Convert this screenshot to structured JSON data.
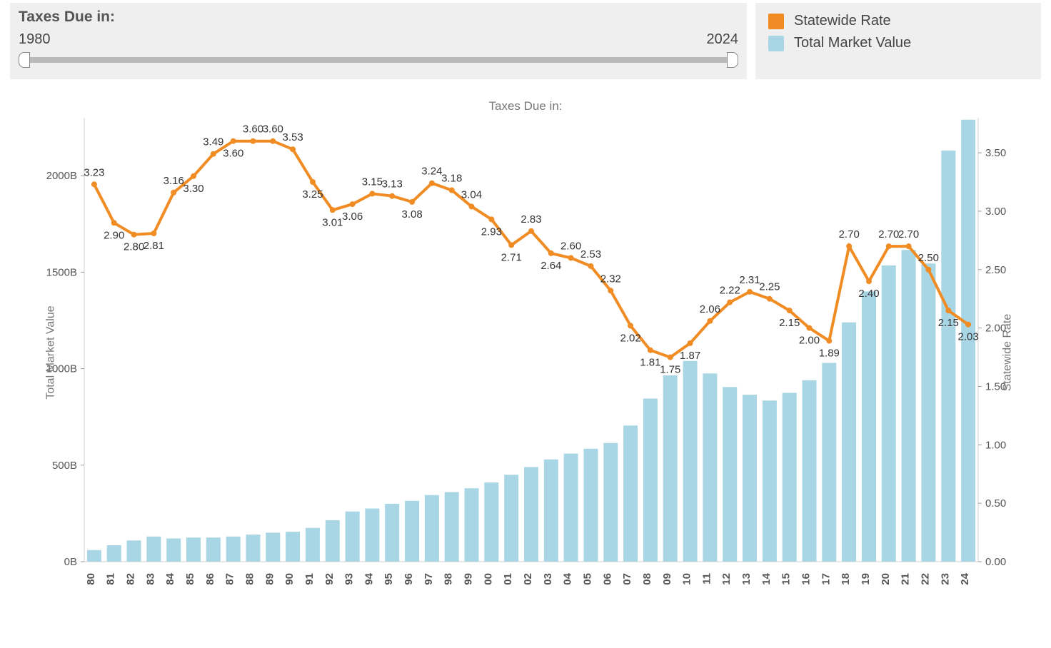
{
  "filter": {
    "title": "Taxes Due in:",
    "min_label": "1980",
    "max_label": "2024"
  },
  "legend": {
    "series1": {
      "label": "Statewide Rate",
      "color": "#f08c23"
    },
    "series2": {
      "label": "Total Market Value",
      "color": "#a9d6e5"
    }
  },
  "chart": {
    "title": "Taxes Due in:",
    "left_axis_label": "Total Market Value",
    "right_axis_label": "Statewide Rate",
    "background_color": "#ffffff",
    "grid_color": "#d8d8d8",
    "left_axis": {
      "min": 0,
      "max": 2300,
      "ticks": [
        0,
        500,
        1000,
        1500,
        2000
      ],
      "tick_labels": [
        "0B",
        "500B",
        "1000B",
        "1500B",
        "2000B"
      ]
    },
    "right_axis": {
      "min": 0,
      "max": 3.8,
      "ticks": [
        0,
        0.5,
        1.0,
        1.5,
        2.0,
        2.5,
        3.0,
        3.5
      ],
      "tick_labels": [
        "0.00",
        "0.50",
        "1.00",
        "1.50",
        "2.00",
        "2.50",
        "3.00",
        "3.50"
      ]
    },
    "years": [
      "80",
      "81",
      "82",
      "83",
      "84",
      "85",
      "86",
      "87",
      "88",
      "89",
      "90",
      "91",
      "92",
      "93",
      "94",
      "95",
      "96",
      "97",
      "98",
      "99",
      "00",
      "01",
      "02",
      "03",
      "04",
      "05",
      "06",
      "07",
      "08",
      "09",
      "10",
      "11",
      "12",
      "13",
      "14",
      "15",
      "16",
      "17",
      "18",
      "19",
      "20",
      "21",
      "22",
      "23",
      "24"
    ],
    "bars": {
      "color": "#a9d6e5",
      "values": [
        60,
        85,
        110,
        130,
        120,
        125,
        125,
        130,
        140,
        150,
        155,
        175,
        215,
        260,
        275,
        300,
        315,
        345,
        360,
        380,
        410,
        450,
        490,
        530,
        560,
        585,
        615,
        705,
        845,
        965,
        1040,
        975,
        905,
        865,
        835,
        875,
        940,
        1030,
        1240,
        1400,
        1535,
        1615,
        1545,
        2130,
        2290
      ]
    },
    "line": {
      "color": "#f08c23",
      "width": 4,
      "marker_radius": 4,
      "values": [
        3.23,
        2.9,
        2.8,
        2.81,
        3.16,
        3.3,
        3.49,
        3.6,
        3.6,
        3.6,
        3.53,
        3.25,
        3.01,
        3.06,
        3.15,
        3.13,
        3.08,
        3.24,
        3.18,
        3.04,
        2.93,
        2.71,
        2.83,
        2.64,
        2.6,
        2.53,
        2.32,
        2.02,
        1.81,
        1.75,
        1.87,
        2.06,
        2.22,
        2.31,
        2.25,
        2.15,
        2.0,
        1.89,
        2.7,
        2.4,
        2.7,
        2.7,
        2.5,
        2.15,
        2.03
      ],
      "labels": [
        "3.23",
        "2.90",
        "2.80",
        "2.81",
        "3.16",
        "3.30",
        "3.49",
        "3.60",
        "3.60",
        "3.60",
        "3.53",
        "3.25",
        "3.01",
        "3.06",
        "3.15",
        "3.13",
        "3.08",
        "3.24",
        "3.18",
        "3.04",
        "2.93",
        "2.71",
        "2.83",
        "2.64",
        "2.60",
        "2.53",
        "2.32",
        "2.02",
        "1.81",
        "1.75",
        "1.87",
        "2.06",
        "2.22",
        "2.31",
        "2.25",
        "2.15",
        "2.00",
        "1.89",
        "2.70",
        "2.40",
        "2.70",
        "2.70",
        "2.50",
        "2.15",
        "2.03"
      ],
      "label_dy": [
        -12,
        22,
        22,
        22,
        -12,
        22,
        -12,
        22,
        -12,
        -12,
        -12,
        22,
        22,
        22,
        -12,
        -12,
        22,
        -12,
        -12,
        -12,
        22,
        22,
        -12,
        22,
        -12,
        -12,
        -12,
        22,
        22,
        22,
        22,
        -12,
        -12,
        -12,
        -12,
        22,
        22,
        22,
        -12,
        22,
        -12,
        -12,
        -12,
        22,
        22
      ]
    }
  }
}
